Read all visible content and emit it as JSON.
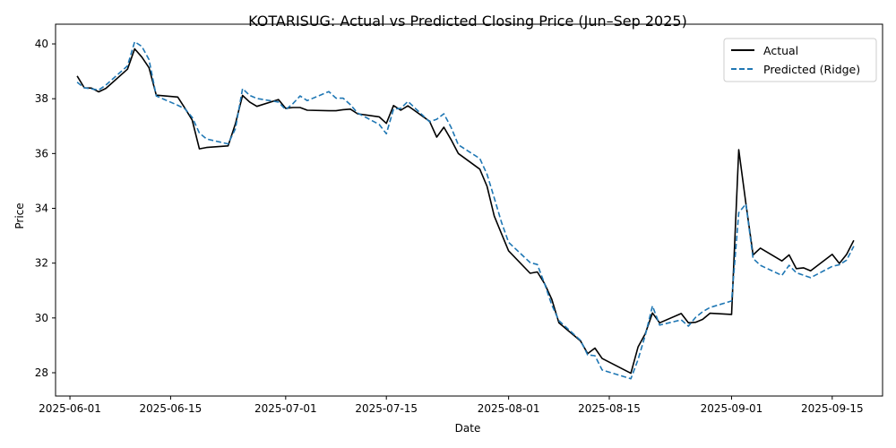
{
  "chart_data": {
    "type": "line",
    "title": "KOTARISUG: Actual vs Predicted Closing Price (Jun–Sep 2025)",
    "xlabel": "Date",
    "ylabel": "Price",
    "x_tick_labels": [
      "2025-06-01",
      "2025-06-15",
      "2025-07-01",
      "2025-07-15",
      "2025-08-01",
      "2025-08-15",
      "2025-09-01",
      "2025-09-15"
    ],
    "y_ticks": [
      28,
      30,
      32,
      34,
      36,
      38,
      40
    ],
    "xlim": [
      "2025-05-30",
      "2025-09-22"
    ],
    "ylim": [
      27.15,
      40.72
    ],
    "grid": false,
    "legend_position": "upper right",
    "dates": [
      "2025-06-02",
      "2025-06-03",
      "2025-06-04",
      "2025-06-05",
      "2025-06-06",
      "2025-06-09",
      "2025-06-10",
      "2025-06-11",
      "2025-06-12",
      "2025-06-13",
      "2025-06-16",
      "2025-06-17",
      "2025-06-18",
      "2025-06-19",
      "2025-06-20",
      "2025-06-23",
      "2025-06-24",
      "2025-06-25",
      "2025-06-26",
      "2025-06-27",
      "2025-06-30",
      "2025-07-01",
      "2025-07-02",
      "2025-07-03",
      "2025-07-04",
      "2025-07-07",
      "2025-07-08",
      "2025-07-09",
      "2025-07-10",
      "2025-07-11",
      "2025-07-14",
      "2025-07-15",
      "2025-07-16",
      "2025-07-17",
      "2025-07-18",
      "2025-07-21",
      "2025-07-22",
      "2025-07-23",
      "2025-07-24",
      "2025-07-25",
      "2025-07-28",
      "2025-07-29",
      "2025-07-30",
      "2025-07-31",
      "2025-08-01",
      "2025-08-04",
      "2025-08-05",
      "2025-08-06",
      "2025-08-07",
      "2025-08-08",
      "2025-08-11",
      "2025-08-12",
      "2025-08-13",
      "2025-08-14",
      "2025-08-18",
      "2025-08-19",
      "2025-08-20",
      "2025-08-21",
      "2025-08-22",
      "2025-08-25",
      "2025-08-26",
      "2025-08-27",
      "2025-08-28",
      "2025-08-29",
      "2025-09-01",
      "2025-09-02",
      "2025-09-03",
      "2025-09-04",
      "2025-09-05",
      "2025-09-08",
      "2025-09-09",
      "2025-09-10",
      "2025-09-11",
      "2025-09-12",
      "2025-09-15",
      "2025-09-16",
      "2025-09-17",
      "2025-09-18"
    ],
    "series": [
      {
        "name": "Actual",
        "color": "#000000",
        "dash": "solid",
        "values": [
          38.83,
          38.4,
          38.39,
          38.25,
          38.38,
          39.08,
          39.82,
          39.52,
          39.13,
          38.13,
          38.06,
          37.65,
          37.22,
          36.17,
          36.22,
          36.28,
          37.08,
          38.12,
          37.88,
          37.72,
          37.97,
          37.65,
          37.68,
          37.68,
          37.58,
          37.56,
          37.56,
          37.6,
          37.62,
          37.45,
          37.34,
          37.1,
          37.75,
          37.58,
          37.74,
          37.18,
          36.6,
          36.96,
          36.51,
          36.0,
          35.43,
          34.8,
          33.72,
          33.08,
          32.45,
          31.63,
          31.68,
          31.25,
          30.68,
          29.82,
          29.16,
          28.7,
          28.9,
          28.52,
          27.98,
          28.94,
          29.42,
          30.18,
          29.82,
          30.16,
          29.82,
          29.84,
          29.95,
          30.17,
          30.13,
          36.14,
          34.17,
          32.3,
          32.55,
          32.08,
          32.3,
          31.8,
          31.83,
          31.72,
          32.32,
          31.99,
          32.32,
          32.83
        ]
      },
      {
        "name": "Predicted (Ridge)",
        "color": "#1f77b4",
        "dash": "dashed",
        "values": [
          38.6,
          38.4,
          38.36,
          38.32,
          38.5,
          39.2,
          40.08,
          39.91,
          39.43,
          38.1,
          37.76,
          37.63,
          37.32,
          36.75,
          36.53,
          36.35,
          36.9,
          38.37,
          38.12,
          38.01,
          37.88,
          37.6,
          37.82,
          38.1,
          37.93,
          38.26,
          38.02,
          38.02,
          37.78,
          37.48,
          37.06,
          36.72,
          37.62,
          37.65,
          37.9,
          37.16,
          37.25,
          37.45,
          36.96,
          36.32,
          35.82,
          35.24,
          34.38,
          33.5,
          32.76,
          32.02,
          31.95,
          31.25,
          30.48,
          29.9,
          29.18,
          28.65,
          28.62,
          28.1,
          27.78,
          28.48,
          29.36,
          30.44,
          29.74,
          29.93,
          29.7,
          30.02,
          30.23,
          30.38,
          30.62,
          33.84,
          34.16,
          32.17,
          31.92,
          31.55,
          31.92,
          31.65,
          31.56,
          31.47,
          31.88,
          31.94,
          32.11,
          32.62
        ]
      }
    ]
  }
}
